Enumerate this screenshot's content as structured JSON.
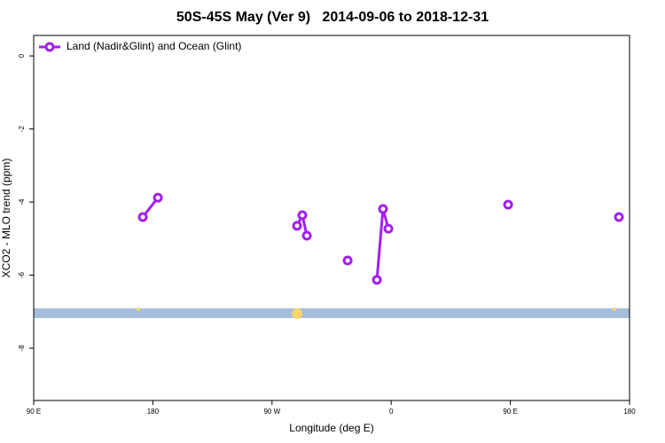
{
  "chart_data": {
    "type": "line",
    "title": "50S-45S May (Ver 9)   2014-09-06 to 2018-12-31",
    "xlabel": "Longitude (deg E)",
    "ylabel": "XCO2 - MLO trend (ppm)",
    "x": [
      172.4,
      183.8,
      null,
      288.9,
      292.9,
      296.3,
      null,
      327.1,
      null,
      349.2,
      353.8,
      357.9,
      null,
      448.3,
      null,
      532.0
    ],
    "series": [
      {
        "name": "Land (Nadir&Glint) and Ocean (Glint)",
        "color": "#a020f0",
        "values": [
          -4.41,
          -3.88,
          null,
          -4.65,
          -4.36,
          -4.92,
          null,
          -5.6,
          null,
          -6.13,
          -4.19,
          -4.73,
          null,
          -4.07,
          null,
          -4.41
        ]
      }
    ],
    "xlim": [
      90,
      540
    ],
    "xticks": [
      {
        "value": 90,
        "label": "90 E"
      },
      180,
      {
        "value": 270,
        "label": "90 W"
      },
      {
        "value": 360,
        "label": "0"
      },
      {
        "value": 450,
        "label": "90 E"
      },
      {
        "value": 540,
        "label": "180"
      }
    ],
    "ylim": [
      -9.43,
      0.56
    ],
    "yticks": [
      0,
      -2,
      -4,
      -6,
      -8
    ],
    "legend": "top-left"
  }
}
